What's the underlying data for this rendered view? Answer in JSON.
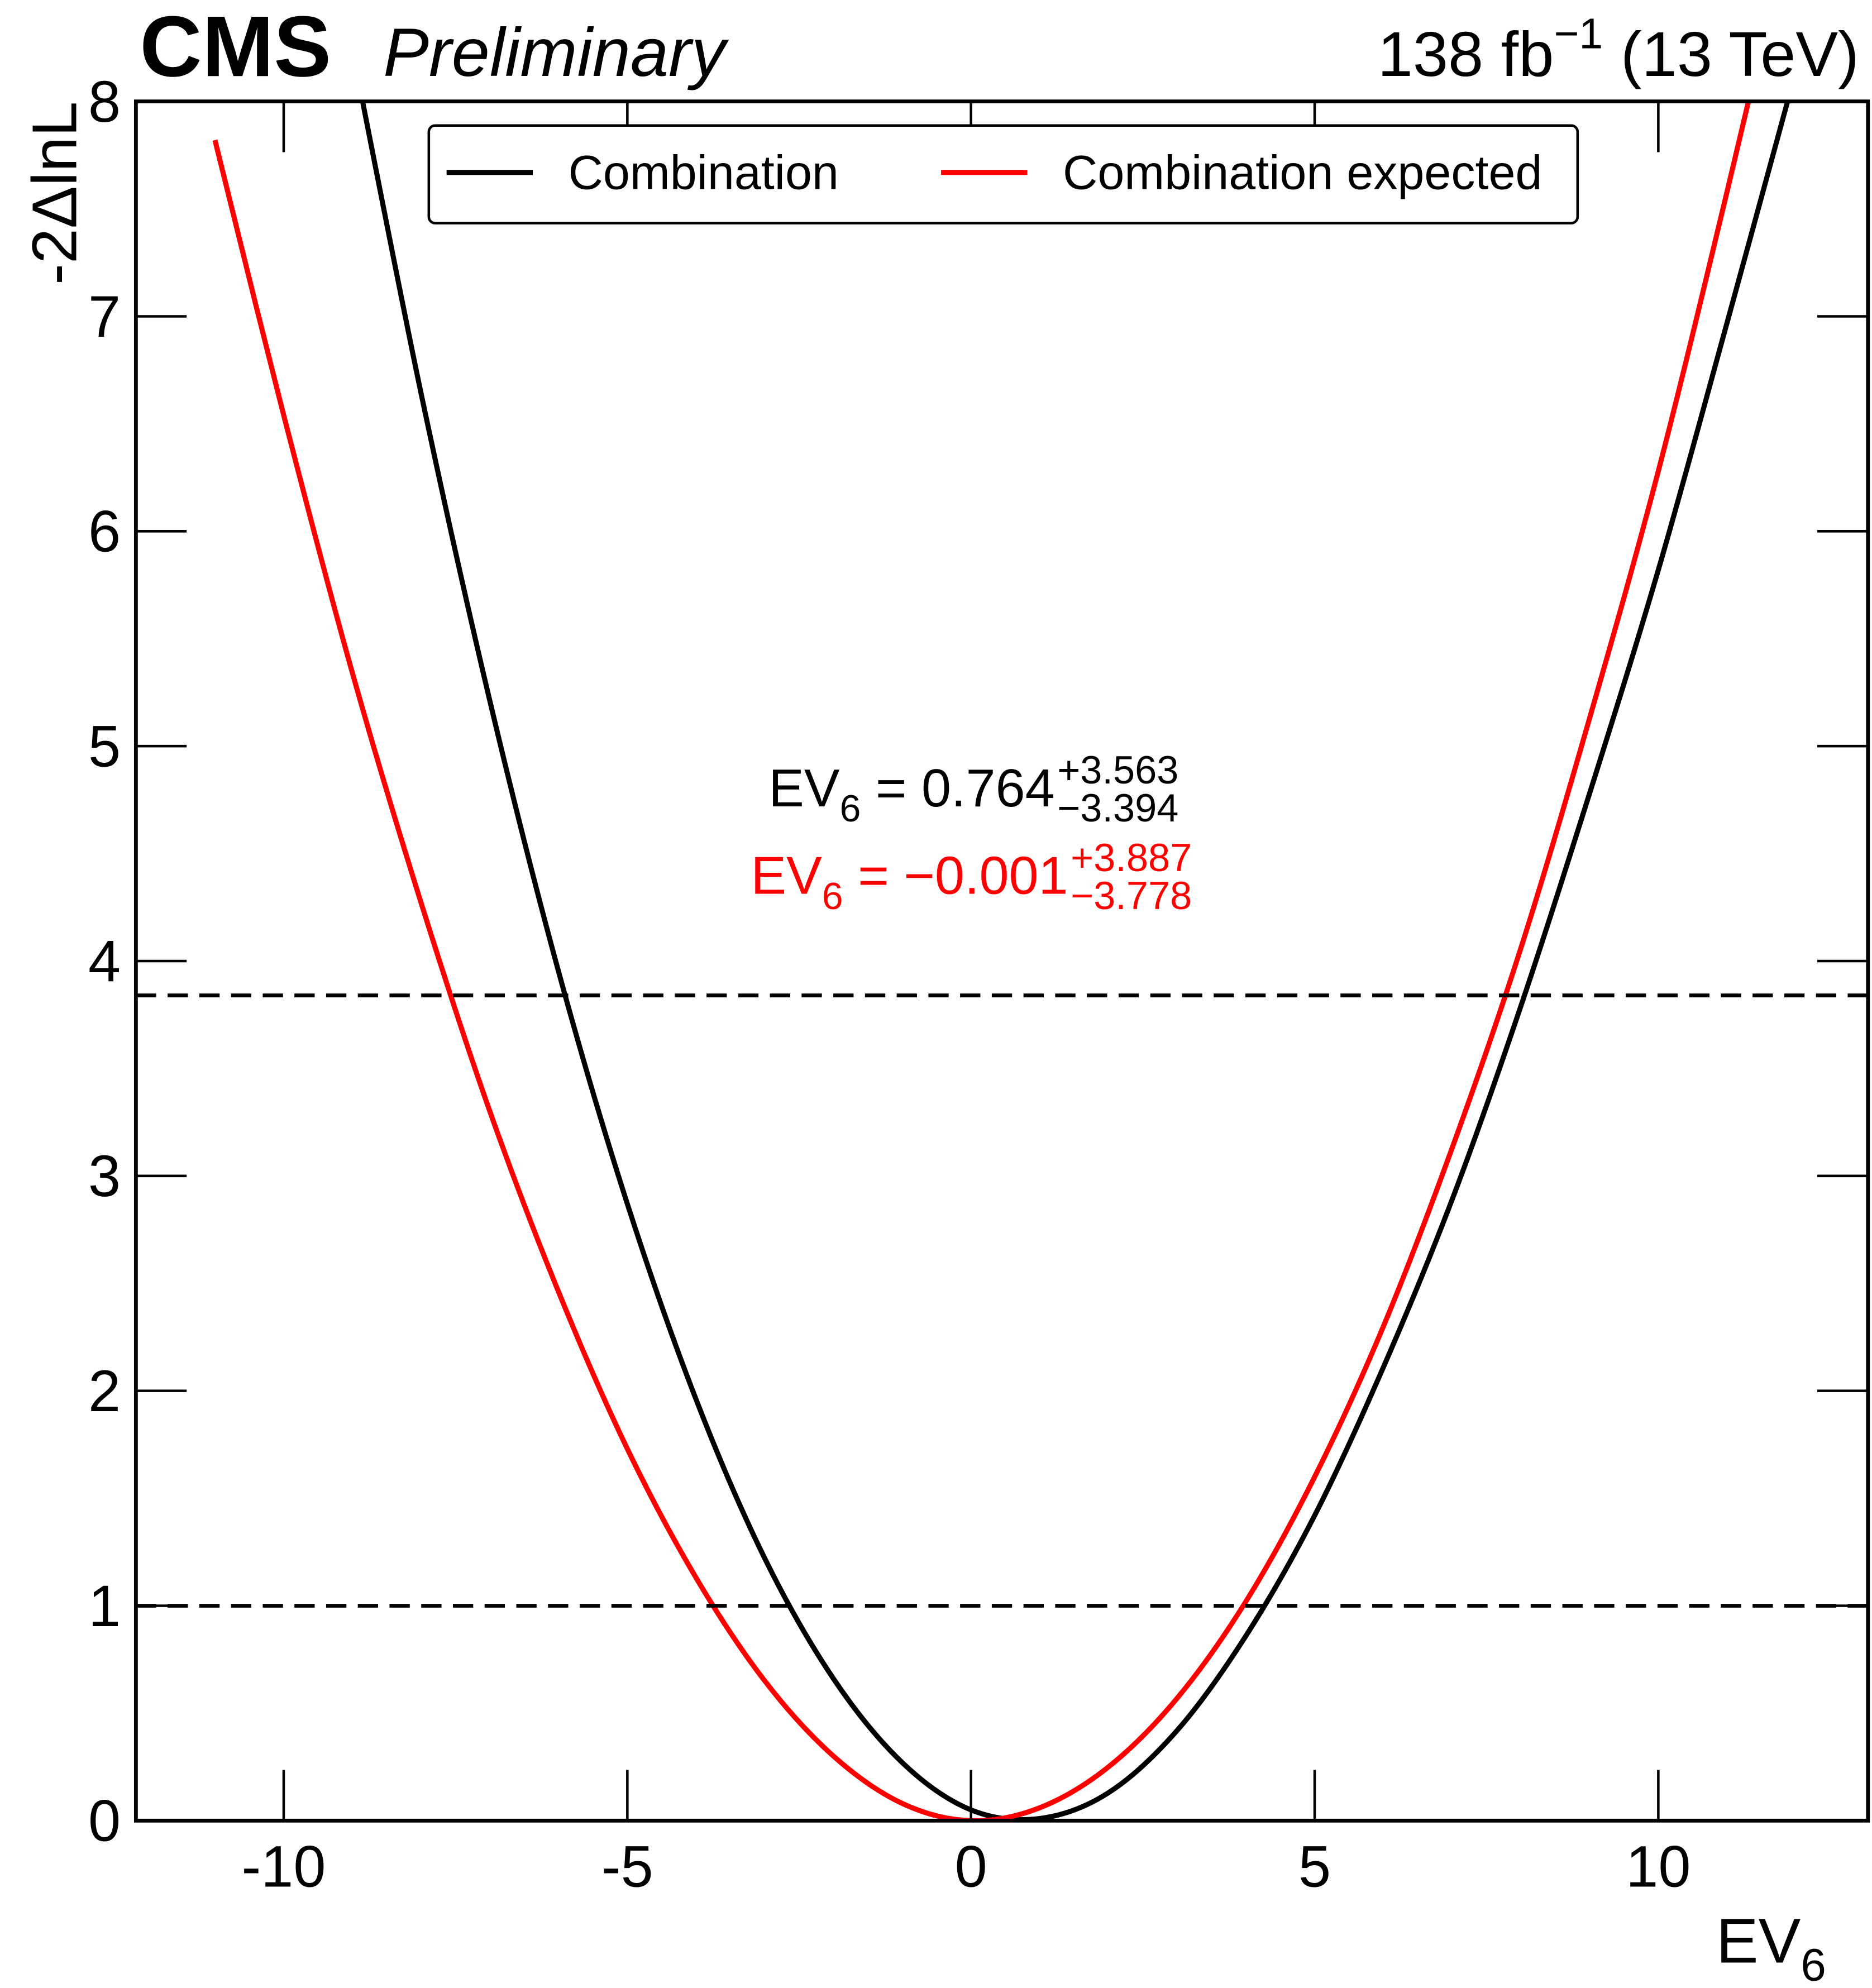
{
  "chart_data": {
    "type": "line",
    "experiment": "CMS",
    "status": "Preliminary",
    "lumi": {
      "main": "138 fb",
      "sup": "−1",
      "tail": " (13 TeV)"
    },
    "x_label": {
      "main": "EV",
      "sub": "6"
    },
    "y_label": "-2ΔlnL",
    "x": [
      -11,
      -10,
      -9,
      -8,
      -7,
      -6,
      -5,
      -4,
      -3,
      -2,
      -1,
      0,
      1,
      2,
      3,
      4,
      5,
      6,
      7,
      8,
      9,
      10,
      11,
      12
    ],
    "series": [
      {
        "name": "Combination",
        "color": "#000000",
        "values": [
          null,
          null,
          8.24,
          6.64,
          5.21,
          3.95,
          2.87,
          1.96,
          1.22,
          0.66,
          0.27,
          0.05,
          0.01,
          0.13,
          0.42,
          0.86,
          1.42,
          2.11,
          2.89,
          3.79,
          4.78,
          5.82,
          6.97,
          8.14
        ]
      },
      {
        "name": "Combination expected",
        "color": "#ff0000",
        "values": [
          7.82,
          6.54,
          5.34,
          4.27,
          3.3,
          2.46,
          1.73,
          1.13,
          0.65,
          0.3,
          0.08,
          0.0,
          0.06,
          0.25,
          0.57,
          1.02,
          1.6,
          2.3,
          3.13,
          4.06,
          5.13,
          6.28,
          7.58,
          8.94
        ]
      }
    ],
    "hlines": [
      1,
      3.84
    ],
    "annotations": [
      {
        "main": "EV",
        "sub": "6",
        "eq": " = 0.764",
        "up": "+3.563",
        "down": "−3.394",
        "color": "#000000"
      },
      {
        "main": "EV",
        "sub": "6",
        "eq": " = −0.001",
        "up": "+3.887",
        "down": "−3.778",
        "color": "#ff0000"
      }
    ],
    "xlim": [
      -12.15,
      13.05
    ],
    "ylim": [
      0,
      8
    ],
    "xticks": [
      -10,
      -5,
      0,
      5,
      10
    ],
    "yticks": [
      0,
      1,
      2,
      3,
      4,
      5,
      6,
      7,
      8
    ],
    "legend": "top"
  }
}
